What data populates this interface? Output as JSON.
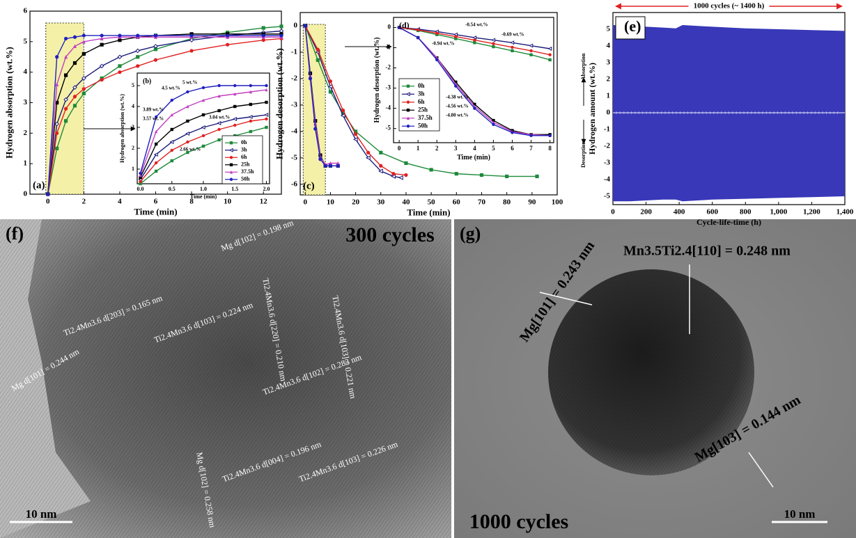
{
  "chart_data": [
    {
      "type": "line",
      "panel_label": "(a)",
      "xlabel": "Time (min)",
      "ylabel": "Hydrogen absorption (wt.%)",
      "xlim": [
        -1,
        13
      ],
      "ylim": [
        0,
        6
      ],
      "xticks": [
        0,
        2,
        4,
        6,
        8,
        10,
        12
      ],
      "yticks": [
        0,
        1,
        2,
        3,
        4,
        5,
        6
      ],
      "x": [
        0,
        0.5,
        1,
        1.5,
        2,
        3,
        4,
        5,
        6,
        8,
        10,
        12,
        13
      ],
      "series": [
        {
          "name": "0h",
          "color": "#1e8a3a",
          "marker": "square",
          "values": [
            0,
            1.5,
            2.4,
            2.9,
            3.3,
            3.8,
            4.2,
            4.5,
            4.75,
            5.1,
            5.3,
            5.45,
            5.5
          ]
        },
        {
          "name": "3h",
          "color": "#1a1a7a",
          "marker": "open-diamond",
          "values": [
            0,
            2.3,
            3.1,
            3.5,
            3.8,
            4.2,
            4.5,
            4.7,
            4.85,
            5.05,
            5.2,
            5.3,
            5.35
          ]
        },
        {
          "name": "6h",
          "color": "#e02020",
          "marker": "circle",
          "values": [
            0,
            2.0,
            2.8,
            3.2,
            3.45,
            3.75,
            4.0,
            4.2,
            4.4,
            4.7,
            4.9,
            5.05,
            5.1
          ]
        },
        {
          "name": "25h",
          "color": "#000000",
          "marker": "square",
          "values": [
            0,
            3.0,
            3.9,
            4.3,
            4.6,
            4.9,
            5.05,
            5.15,
            5.2,
            5.25,
            5.25,
            5.25,
            5.25
          ]
        },
        {
          "name": "37.5h",
          "color": "#c040c0",
          "marker": "triangle",
          "values": [
            0,
            3.6,
            4.5,
            4.85,
            5.0,
            5.1,
            5.15,
            5.15,
            5.15,
            5.15,
            5.15,
            5.15,
            5.15
          ]
        },
        {
          "name": "50h",
          "color": "#2020c0",
          "marker": "circle",
          "values": [
            0,
            4.5,
            5.1,
            5.15,
            5.2,
            5.2,
            5.2,
            5.2,
            5.2,
            5.2,
            5.2,
            5.2,
            5.2
          ]
        }
      ]
    },
    {
      "type": "line",
      "panel_label": "(b)",
      "xlabel": "Time (min)",
      "ylabel": "Hydrogen absorption (wt.%)",
      "legend": true,
      "xlim": [
        -0.05,
        2.05
      ],
      "ylim": [
        0.3,
        5.6
      ],
      "xticks": [
        {
          "value": 0,
          "label": "0.0"
        },
        {
          "value": 0.5,
          "label": "0.5"
        },
        {
          "value": 1,
          "label": "1.0"
        },
        {
          "value": 1.5,
          "label": "1.5"
        },
        {
          "value": 2,
          "label": "2.0"
        }
      ],
      "yticks": [
        1,
        2,
        3,
        4,
        5
      ],
      "x": [
        0,
        0.25,
        0.5,
        0.75,
        1,
        1.25,
        1.5,
        1.75,
        2
      ],
      "series": [
        {
          "name": "0h",
          "color": "#1e8a3a",
          "marker": "square",
          "values": [
            0.3,
            0.9,
            1.4,
            1.8,
            2.1,
            2.4,
            2.6,
            2.8,
            3.0
          ]
        },
        {
          "name": "3h",
          "color": "#1a1a7a",
          "marker": "open-triangle",
          "values": [
            0.5,
            1.7,
            2.3,
            2.7,
            3.0,
            3.2,
            3.4,
            3.5,
            3.6
          ]
        },
        {
          "name": "6h",
          "color": "#e02020",
          "marker": "circle",
          "values": [
            0.4,
            1.3,
            1.9,
            2.3,
            2.6,
            2.9,
            3.1,
            3.3,
            3.4
          ]
        },
        {
          "name": "25h",
          "color": "#000000",
          "marker": "square",
          "values": [
            0.6,
            2.2,
            2.9,
            3.3,
            3.6,
            3.8,
            4.0,
            4.1,
            4.2
          ]
        },
        {
          "name": "37.5h",
          "color": "#c040c0",
          "marker": "triangle",
          "values": [
            0.7,
            2.8,
            3.6,
            4.0,
            4.3,
            4.5,
            4.6,
            4.7,
            4.8
          ]
        },
        {
          "name": "50h",
          "color": "#2020c0",
          "marker": "circle",
          "values": [
            0.8,
            3.5,
            4.3,
            4.7,
            4.9,
            5.0,
            5.0,
            5.0,
            5.0
          ]
        }
      ],
      "annotations": [
        "5 wt.%",
        "4.5 wt.%",
        "3.89 wt.%",
        "3.57 wt.%",
        "3.04 wt.%",
        "2.66 wt.%"
      ]
    },
    {
      "type": "line",
      "panel_label": "(c)",
      "xlabel": "Time (min)",
      "ylabel": "Hydrogen desorption (wt.%)",
      "xlim": [
        -2,
        100
      ],
      "ylim": [
        -6.4,
        0.5
      ],
      "xticks": [
        0,
        10,
        20,
        30,
        40,
        50,
        60,
        70,
        80,
        90,
        100
      ],
      "yticks": [
        -6,
        -5,
        -4,
        -3,
        -2,
        -1,
        0
      ],
      "series": [
        {
          "name": "0h",
          "color": "#1e8a3a",
          "marker": "square",
          "x": [
            0,
            5,
            10,
            15,
            20,
            30,
            40,
            50,
            60,
            70,
            80,
            92
          ],
          "values": [
            0,
            -1.3,
            -2.5,
            -3.3,
            -4.0,
            -4.8,
            -5.2,
            -5.45,
            -5.6,
            -5.65,
            -5.7,
            -5.7
          ]
        },
        {
          "name": "3h",
          "color": "#1a1a7a",
          "marker": "open-triangle",
          "x": [
            0,
            5,
            10,
            15,
            20,
            25,
            30,
            35,
            38
          ],
          "values": [
            0,
            -1.0,
            -2.3,
            -3.4,
            -4.3,
            -5.0,
            -5.5,
            -5.7,
            -5.75
          ]
        },
        {
          "name": "6h",
          "color": "#e02020",
          "marker": "circle",
          "x": [
            0,
            5,
            10,
            15,
            20,
            25,
            30,
            35,
            40
          ],
          "values": [
            0,
            -0.9,
            -2.1,
            -3.2,
            -4.1,
            -4.8,
            -5.3,
            -5.6,
            -5.65
          ]
        },
        {
          "name": "25h",
          "color": "#000000",
          "marker": "square",
          "x": [
            0,
            2,
            4,
            6,
            8,
            10,
            13
          ],
          "values": [
            0,
            -1.8,
            -3.6,
            -4.9,
            -5.3,
            -5.3,
            -5.3
          ]
        },
        {
          "name": "37.5h",
          "color": "#c040c0",
          "marker": "triangle",
          "x": [
            0,
            2,
            4,
            6,
            8,
            10,
            13
          ],
          "values": [
            0,
            -1.9,
            -3.7,
            -4.95,
            -5.25,
            -5.2,
            -5.2
          ]
        },
        {
          "name": "50h",
          "color": "#2020c0",
          "marker": "circle",
          "x": [
            0,
            2,
            4,
            6,
            8,
            10,
            13
          ],
          "values": [
            0,
            -2.0,
            -3.9,
            -5.05,
            -5.3,
            -5.3,
            -5.3
          ]
        }
      ]
    },
    {
      "type": "line",
      "panel_label": "(d)",
      "xlabel": "Time (min)",
      "ylabel": "Hydrogen desorption (wt.%)",
      "legend": true,
      "xlim": [
        -0.3,
        8.2
      ],
      "ylim": [
        -5.7,
        0.5
      ],
      "xticks": [
        0,
        1,
        2,
        3,
        4,
        5,
        6,
        7,
        8
      ],
      "yticks": [
        -5,
        -4,
        -3,
        -2,
        -1,
        0
      ],
      "x": [
        0,
        1,
        2,
        3,
        4,
        5,
        6,
        7,
        8
      ],
      "series": [
        {
          "name": "0h",
          "color": "#1e8a3a",
          "marker": "square",
          "values": [
            0,
            -0.15,
            -0.35,
            -0.55,
            -0.75,
            -0.95,
            -1.15,
            -1.35,
            -1.6
          ]
        },
        {
          "name": "3h",
          "color": "#1a1a7a",
          "marker": "open-triangle",
          "values": [
            0,
            -0.08,
            -0.2,
            -0.35,
            -0.5,
            -0.62,
            -0.75,
            -0.9,
            -1.05
          ]
        },
        {
          "name": "6h",
          "color": "#e02020",
          "marker": "circle",
          "values": [
            0,
            -0.12,
            -0.28,
            -0.45,
            -0.62,
            -0.8,
            -0.98,
            -1.15,
            -1.35
          ]
        },
        {
          "name": "25h",
          "color": "#000000",
          "marker": "square",
          "values": [
            0,
            -0.5,
            -1.5,
            -2.7,
            -3.8,
            -4.6,
            -5.1,
            -5.3,
            -5.3
          ]
        },
        {
          "name": "37.5h",
          "color": "#c040c0",
          "marker": "triangle",
          "values": [
            0,
            -0.5,
            -1.5,
            -2.8,
            -3.9,
            -4.7,
            -5.15,
            -5.3,
            -5.35
          ]
        },
        {
          "name": "50h",
          "color": "#2020c0",
          "marker": "circle",
          "values": [
            0,
            -0.5,
            -1.6,
            -2.9,
            -4.0,
            -4.8,
            -5.2,
            -5.35,
            -5.35
          ]
        }
      ],
      "annotations": [
        "-0.54 wt.%",
        "-0.69 wt.%",
        "-0.94 wt.%",
        "-4.38 wt.%",
        "-4.56 wt.%",
        "-4.80 wt.%"
      ]
    },
    {
      "type": "band",
      "panel_label": "(e)",
      "title": "1000 cycles (~ 1400 h)",
      "xlabel": "Cycle-life-time (h)",
      "ylabel": "Hydrogen amount (wt.%)",
      "annotations": [
        "Absorption",
        "Desorption"
      ],
      "xlim": [
        0,
        1400
      ],
      "ylim": [
        -5.5,
        6
      ],
      "xticks": [
        0,
        200,
        400,
        600,
        800,
        {
          "value": 1000,
          "label": "1,000"
        },
        {
          "value": 1200,
          "label": "1,200"
        },
        {
          "value": 1400,
          "label": "1,400"
        }
      ],
      "yticks": [
        -5,
        -4,
        -3,
        -2,
        -1,
        0,
        1,
        2,
        3,
        4,
        5
      ],
      "x": [
        0,
        100,
        200,
        300,
        380,
        420,
        600,
        800,
        1000,
        1200,
        1400
      ],
      "series": [
        {
          "color": "#3838b8",
          "values": [
            5.25,
            5.2,
            5.15,
            5.1,
            5.05,
            5.25,
            5.15,
            5.05,
            5.0,
            4.95,
            4.9
          ]
        },
        {
          "color": "#3838b8",
          "values": [
            -5.3,
            -5.3,
            -5.25,
            -5.2,
            -5.2,
            -5.3,
            -5.2,
            -5.15,
            -5.1,
            -5.05,
            -5.0
          ]
        }
      ]
    }
  ],
  "images": [
    {
      "panel_label": "(f)",
      "caption": "300 cycles",
      "scale_bar": "10 nm",
      "labels": [
        "Mg d[102] = 0.198 nm",
        "Ti2.4Mn3.6 d[220] = 0.210 nm",
        "Ti2.4Mn3.6 d[103] = 0.221 nm",
        "Ti2.4Mn3.6 d[203] = 0.165 nm",
        "Ti2.4Mn3.6 d[103] = 0.224 nm",
        "Mg d[101] = 0.244 nm",
        "Ti2.4Mn3.6 d[102] = 0.283 nm",
        "Mg d[102] = 0.258 nm",
        "Ti2.4Mn3.6 d[004] = 0.196 nm",
        "Ti2.4Mn3.6 d[103] = 0.226 nm"
      ]
    },
    {
      "panel_label": "(g)",
      "caption": "1000 cycles",
      "scale_bar": "10 nm",
      "labels": [
        "Mn3.5Ti2.4[110] = 0.248 nm",
        "Mg[101] = 0.243 nm",
        "Mg[103] = 0.144 nm"
      ]
    }
  ]
}
